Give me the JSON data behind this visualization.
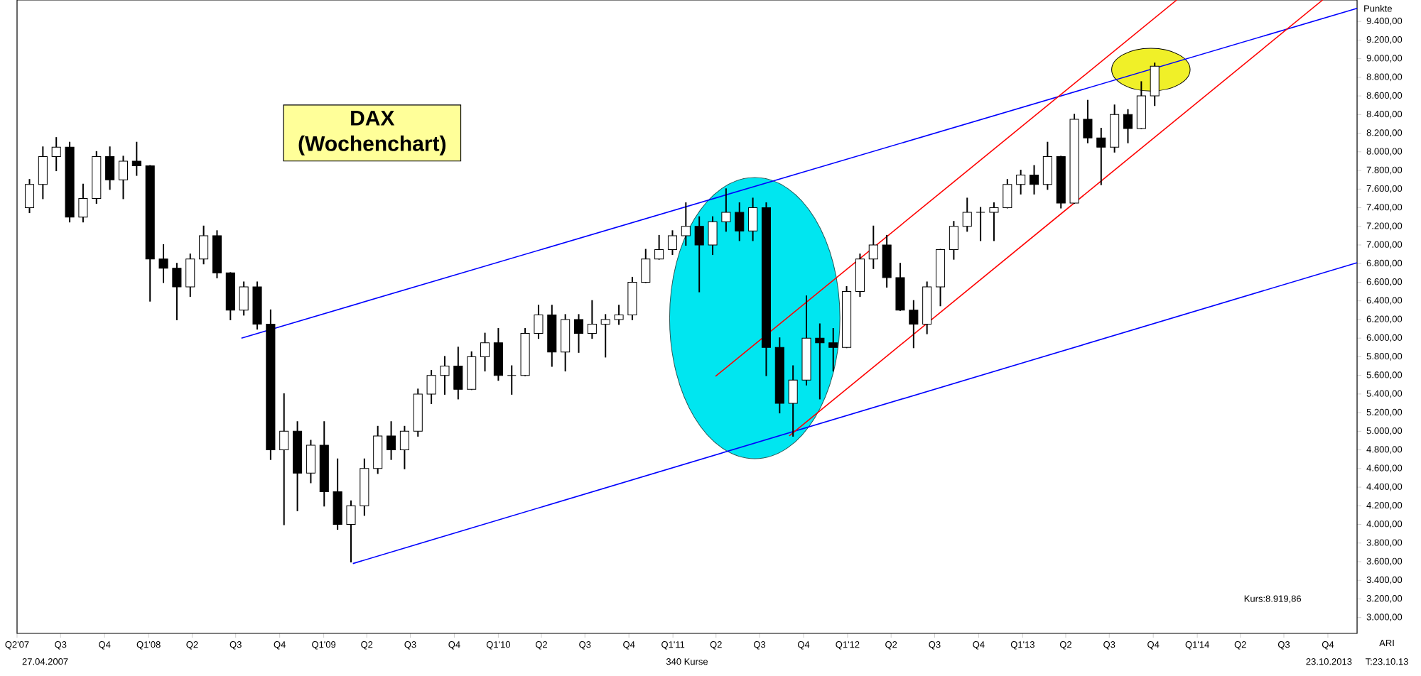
{
  "chart_data": {
    "type": "candlestick",
    "title": "DAX",
    "subtitle": "(Wochenchart)",
    "ylabel": "Punkte",
    "color": "#000000",
    "x": [
      "2007-04-27",
      "2007-05-25",
      "2007-06-22",
      "2007-07-20",
      "2007-08-17",
      "2007-09-14",
      "2007-10-12",
      "2007-11-09",
      "2007-12-07",
      "2008-01-04",
      "2008-02-01",
      "2008-02-29",
      "2008-03-28",
      "2008-04-25",
      "2008-05-23",
      "2008-06-20",
      "2008-07-18",
      "2008-08-15",
      "2008-09-12",
      "2008-10-10",
      "2008-11-07",
      "2008-12-05",
      "2009-01-02",
      "2009-01-30",
      "2009-02-27",
      "2009-03-27",
      "2009-04-24",
      "2009-05-22",
      "2009-06-19",
      "2009-07-17",
      "2009-08-14",
      "2009-09-11",
      "2009-10-09",
      "2009-11-06",
      "2009-12-04",
      "2010-01-01",
      "2010-01-29",
      "2010-02-26",
      "2010-03-26",
      "2010-04-23",
      "2010-05-21",
      "2010-06-18",
      "2010-07-16",
      "2010-08-13",
      "2010-09-10",
      "2010-10-08",
      "2010-11-05",
      "2010-12-03",
      "2010-12-31",
      "2011-01-28",
      "2011-02-25",
      "2011-03-25",
      "2011-04-22",
      "2011-05-20",
      "2011-06-17",
      "2011-07-15",
      "2011-08-12",
      "2011-09-09",
      "2011-10-07",
      "2011-11-04",
      "2011-12-02",
      "2011-12-30",
      "2012-01-27",
      "2012-02-24",
      "2012-03-23",
      "2012-04-20",
      "2012-05-18",
      "2012-06-15",
      "2012-07-13",
      "2012-08-10",
      "2012-09-07",
      "2012-10-05",
      "2012-11-02",
      "2012-11-30",
      "2012-12-28",
      "2013-01-25",
      "2013-02-22",
      "2013-03-22",
      "2013-04-19",
      "2013-05-17",
      "2013-06-14",
      "2013-07-12",
      "2013-08-09",
      "2013-09-06",
      "2013-10-04"
    ],
    "ohlc": [
      [
        7400,
        7700,
        7350,
        7650
      ],
      [
        7650,
        8050,
        7500,
        7950
      ],
      [
        7950,
        8150,
        7800,
        8050
      ],
      [
        8050,
        8100,
        7250,
        7300
      ],
      [
        7300,
        7650,
        7250,
        7500
      ],
      [
        7500,
        8000,
        7450,
        7950
      ],
      [
        7950,
        8050,
        7600,
        7700
      ],
      [
        7700,
        7950,
        7500,
        7900
      ],
      [
        7900,
        8100,
        7750,
        7850
      ],
      [
        7850,
        7850,
        6400,
        6850
      ],
      [
        6850,
        7000,
        6600,
        6750
      ],
      [
        6750,
        6800,
        6200,
        6550
      ],
      [
        6550,
        6900,
        6450,
        6850
      ],
      [
        6850,
        7200,
        6800,
        7100
      ],
      [
        7100,
        7150,
        6650,
        6700
      ],
      [
        6700,
        6700,
        6200,
        6300
      ],
      [
        6300,
        6600,
        6250,
        6550
      ],
      [
        6550,
        6600,
        6100,
        6150
      ],
      [
        6150,
        6300,
        4700,
        4800
      ],
      [
        4800,
        5400,
        4000,
        5000
      ],
      [
        5000,
        5100,
        4150,
        4550
      ],
      [
        4550,
        4900,
        4450,
        4850
      ],
      [
        4850,
        5100,
        4200,
        4350
      ],
      [
        4350,
        4700,
        3950,
        4000
      ],
      [
        4000,
        4250,
        3600,
        4200
      ],
      [
        4200,
        4700,
        4100,
        4600
      ],
      [
        4600,
        5050,
        4550,
        4950
      ],
      [
        4950,
        5100,
        4700,
        4800
      ],
      [
        4800,
        5050,
        4600,
        5000
      ],
      [
        5000,
        5450,
        4950,
        5400
      ],
      [
        5400,
        5650,
        5300,
        5600
      ],
      [
        5600,
        5800,
        5400,
        5700
      ],
      [
        5700,
        5900,
        5350,
        5450
      ],
      [
        5450,
        5850,
        5450,
        5800
      ],
      [
        5800,
        6050,
        5650,
        5950
      ],
      [
        5950,
        6100,
        5550,
        5600
      ],
      [
        5600,
        5700,
        5400,
        5600
      ],
      [
        5600,
        6100,
        5600,
        6050
      ],
      [
        6050,
        6350,
        6000,
        6250
      ],
      [
        6250,
        6350,
        5700,
        5850
      ],
      [
        5850,
        6250,
        5650,
        6200
      ],
      [
        6200,
        6250,
        5850,
        6050
      ],
      [
        6050,
        6400,
        6000,
        6150
      ],
      [
        6150,
        6250,
        5800,
        6200
      ],
      [
        6200,
        6350,
        6150,
        6250
      ],
      [
        6250,
        6650,
        6200,
        6600
      ],
      [
        6600,
        6950,
        6600,
        6850
      ],
      [
        6850,
        7100,
        6850,
        6950
      ],
      [
        6950,
        7150,
        6900,
        7100
      ],
      [
        7100,
        7450,
        7000,
        7200
      ],
      [
        7200,
        7300,
        6500,
        7000
      ],
      [
        7000,
        7300,
        6900,
        7250
      ],
      [
        7250,
        7600,
        7150,
        7350
      ],
      [
        7350,
        7450,
        7050,
        7150
      ],
      [
        7150,
        7500,
        7050,
        7400
      ],
      [
        7400,
        7450,
        5600,
        5900
      ],
      [
        5900,
        6000,
        5200,
        5300
      ],
      [
        5300,
        5700,
        4950,
        5550
      ],
      [
        5550,
        6450,
        5500,
        6000
      ],
      [
        6000,
        6150,
        5350,
        5950
      ],
      [
        5950,
        6100,
        5650,
        5900
      ],
      [
        5900,
        6550,
        5900,
        6500
      ],
      [
        6500,
        6900,
        6450,
        6850
      ],
      [
        6850,
        7200,
        6750,
        7000
      ],
      [
        7000,
        7100,
        6550,
        6650
      ],
      [
        6650,
        6800,
        6300,
        6300
      ],
      [
        6300,
        6400,
        5900,
        6150
      ],
      [
        6150,
        6600,
        6050,
        6550
      ],
      [
        6550,
        6950,
        6350,
        6950
      ],
      [
        6950,
        7250,
        6850,
        7200
      ],
      [
        7200,
        7500,
        7150,
        7350
      ],
      [
        7350,
        7400,
        7050,
        7350
      ],
      [
        7350,
        7450,
        7050,
        7400
      ],
      [
        7400,
        7700,
        7400,
        7650
      ],
      [
        7650,
        7800,
        7550,
        7750
      ],
      [
        7750,
        7850,
        7550,
        7650
      ],
      [
        7650,
        8100,
        7600,
        7950
      ],
      [
        7950,
        7950,
        7400,
        7450
      ],
      [
        7450,
        8400,
        7450,
        8350
      ],
      [
        8350,
        8550,
        8100,
        8150
      ],
      [
        8150,
        8250,
        7650,
        8050
      ],
      [
        8050,
        8500,
        8000,
        8400
      ],
      [
        8400,
        8450,
        8100,
        8250
      ],
      [
        8250,
        8750,
        8250,
        8600
      ],
      [
        8600,
        8950,
        8500,
        8920
      ]
    ],
    "series": [
      {
        "type": "line",
        "color": "#0000ff",
        "x": [
          "2008-07-13",
          "2014-12-01"
        ],
        "values": [
          6000,
          9540
        ]
      },
      {
        "type": "line",
        "color": "#0000ff",
        "x": [
          "2009-03-03",
          "2014-12-01"
        ],
        "values": [
          3580,
          6810
        ]
      },
      {
        "type": "line",
        "color": "#ff0000",
        "x": [
          "2011-03-31",
          "2013-11-19"
        ],
        "values": [
          5590,
          9630
        ]
      },
      {
        "type": "line",
        "color": "#ff0000",
        "x": [
          "2011-09-01",
          "2014-09-20"
        ],
        "values": [
          4950,
          9630
        ]
      }
    ],
    "xlim": [
      "2007-04-01",
      "2014-12-01"
    ],
    "ylim": [
      2830,
      9630
    ],
    "xticks": [
      {
        "value": "2007-04-01",
        "label": "Q2'07"
      },
      {
        "value": "2007-07-01",
        "label": "Q3"
      },
      {
        "value": "2007-10-01",
        "label": "Q4"
      },
      {
        "value": "2008-01-01",
        "label": "Q1'08"
      },
      {
        "value": "2008-04-01",
        "label": "Q2"
      },
      {
        "value": "2008-07-01",
        "label": "Q3"
      },
      {
        "value": "2008-10-01",
        "label": "Q4"
      },
      {
        "value": "2009-01-01",
        "label": "Q1'09"
      },
      {
        "value": "2009-04-01",
        "label": "Q2"
      },
      {
        "value": "2009-07-01",
        "label": "Q3"
      },
      {
        "value": "2009-10-01",
        "label": "Q4"
      },
      {
        "value": "2010-01-01",
        "label": "Q1'10"
      },
      {
        "value": "2010-04-01",
        "label": "Q2"
      },
      {
        "value": "2010-07-01",
        "label": "Q3"
      },
      {
        "value": "2010-10-01",
        "label": "Q4"
      },
      {
        "value": "2011-01-01",
        "label": "Q1'11"
      },
      {
        "value": "2011-04-01",
        "label": "Q2"
      },
      {
        "value": "2011-07-01",
        "label": "Q3"
      },
      {
        "value": "2011-10-01",
        "label": "Q4"
      },
      {
        "value": "2012-01-01",
        "label": "Q1'12"
      },
      {
        "value": "2012-04-01",
        "label": "Q2"
      },
      {
        "value": "2012-07-01",
        "label": "Q3"
      },
      {
        "value": "2012-10-01",
        "label": "Q4"
      },
      {
        "value": "2013-01-01",
        "label": "Q1'13"
      },
      {
        "value": "2013-04-01",
        "label": "Q2"
      },
      {
        "value": "2013-07-01",
        "label": "Q3"
      },
      {
        "value": "2013-10-01",
        "label": "Q4"
      },
      {
        "value": "2014-01-01",
        "label": "Q1'14"
      },
      {
        "value": "2014-04-01",
        "label": "Q2"
      },
      {
        "value": "2014-07-01",
        "label": "Q3"
      },
      {
        "value": "2014-10-01",
        "label": "Q4"
      }
    ],
    "yticks": [
      {
        "value": 3000,
        "label": "3.000,00"
      },
      {
        "value": 3200,
        "label": "3.200,00"
      },
      {
        "value": 3400,
        "label": "3.400,00"
      },
      {
        "value": 3600,
        "label": "3.600,00"
      },
      {
        "value": 3800,
        "label": "3.800,00"
      },
      {
        "value": 4000,
        "label": "4.000,00"
      },
      {
        "value": 4200,
        "label": "4.200,00"
      },
      {
        "value": 4400,
        "label": "4.400,00"
      },
      {
        "value": 4600,
        "label": "4.600,00"
      },
      {
        "value": 4800,
        "label": "4.800,00"
      },
      {
        "value": 5000,
        "label": "5.000,00"
      },
      {
        "value": 5200,
        "label": "5.200,00"
      },
      {
        "value": 5400,
        "label": "5.400,00"
      },
      {
        "value": 5600,
        "label": "5.600,00"
      },
      {
        "value": 5800,
        "label": "5.800,00"
      },
      {
        "value": 6000,
        "label": "6.000,00"
      },
      {
        "value": 6200,
        "label": "6.200,00"
      },
      {
        "value": 6400,
        "label": "6.400,00"
      },
      {
        "value": 6600,
        "label": "6.600,00"
      },
      {
        "value": 6800,
        "label": "6.800,00"
      },
      {
        "value": 7000,
        "label": "7.000,00"
      },
      {
        "value": 7200,
        "label": "7.200,00"
      },
      {
        "value": 7400,
        "label": "7.400,00"
      },
      {
        "value": 7600,
        "label": "7.600,00"
      },
      {
        "value": 7800,
        "label": "7.800,00"
      },
      {
        "value": 8000,
        "label": "8.000,00"
      },
      {
        "value": 8200,
        "label": "8.200,00"
      },
      {
        "value": 8400,
        "label": "8.400,00"
      },
      {
        "value": 8600,
        "label": "8.600,00"
      },
      {
        "value": 8800,
        "label": "8.800,00"
      },
      {
        "value": 9000,
        "label": "9.000,00"
      },
      {
        "value": 9200,
        "label": "9.200,00"
      },
      {
        "value": 9400,
        "label": "9.400,00"
      }
    ],
    "annotations": [
      "27.04.2007",
      "340 Kurse",
      "23.10.2013",
      "ARI",
      "T:23.10.13",
      "Kurs:8.919,86"
    ]
  }
}
